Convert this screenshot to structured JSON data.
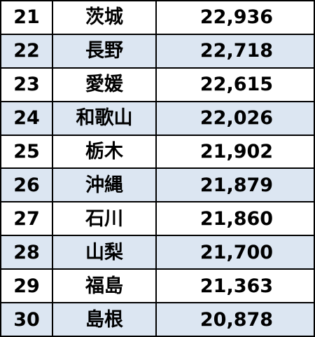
{
  "table": {
    "rows": [
      {
        "rank": "21",
        "prefecture": "茨城",
        "value": "22,936"
      },
      {
        "rank": "22",
        "prefecture": "長野",
        "value": "22,718"
      },
      {
        "rank": "23",
        "prefecture": "愛媛",
        "value": "22,615"
      },
      {
        "rank": "24",
        "prefecture": "和歌山",
        "value": "22,026"
      },
      {
        "rank": "25",
        "prefecture": "栃木",
        "value": "21,902"
      },
      {
        "rank": "26",
        "prefecture": "沖縄",
        "value": "21,879"
      },
      {
        "rank": "27",
        "prefecture": "石川",
        "value": "21,860"
      },
      {
        "rank": "28",
        "prefecture": "山梨",
        "value": "21,700"
      },
      {
        "rank": "29",
        "prefecture": "福島",
        "value": "21,363"
      },
      {
        "rank": "30",
        "prefecture": "島根",
        "value": "20,878"
      }
    ]
  },
  "colors": {
    "row_shade": "#dce6f2",
    "border": "#000000"
  }
}
